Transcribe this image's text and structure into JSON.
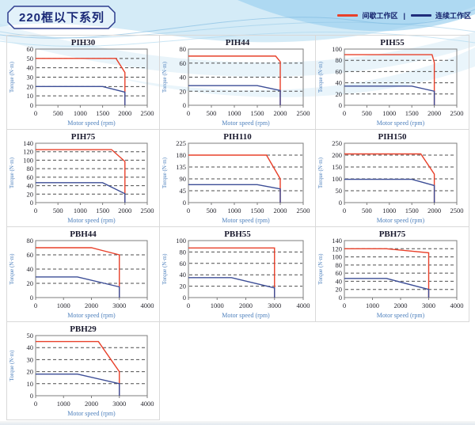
{
  "header": {
    "title": "220框以下系列",
    "legend": {
      "items": [
        {
          "label": "间歇工作区",
          "color": "#e8402a"
        },
        {
          "label": "连续工作区",
          "color": "#1f2d7b"
        }
      ],
      "separator": "|"
    }
  },
  "chart_defaults": {
    "xlabel": "Motor speed (rpm)",
    "ylabel": "Torque (N·m)",
    "grid": "dashed",
    "legend_position": "top-right-of-page",
    "colors": {
      "intermittent": "#e8402a",
      "continuous": "#3c4d96",
      "grid_line": "#4f4f4f",
      "plot_border": "#7d7d7d",
      "axis_label": "#4f81bd"
    }
  },
  "chart_data": [
    {
      "type": "line",
      "name": "PIH30",
      "title": "PIH30",
      "xlim": [
        0,
        2500
      ],
      "xticks": [
        0,
        500,
        1000,
        1500,
        2000,
        2500
      ],
      "ylim": [
        0,
        60
      ],
      "yticks": [
        0,
        10,
        20,
        30,
        40,
        50,
        60
      ],
      "series": [
        {
          "name": "间歇工作区",
          "points": [
            [
              0,
              50
            ],
            [
              1800,
              50
            ],
            [
              2000,
              35
            ],
            [
              2000,
              0
            ]
          ]
        },
        {
          "name": "连续工作区",
          "points": [
            [
              0,
              20
            ],
            [
              1500,
              20
            ],
            [
              2000,
              14
            ],
            [
              2000,
              0
            ]
          ]
        }
      ]
    },
    {
      "type": "line",
      "name": "PIH44",
      "title": "PIH44",
      "xlim": [
        0,
        2500
      ],
      "xticks": [
        0,
        500,
        1000,
        1500,
        2000,
        2500
      ],
      "ylim": [
        0,
        80
      ],
      "yticks": [
        0,
        20,
        40,
        60,
        80
      ],
      "series": [
        {
          "name": "间歇工作区",
          "points": [
            [
              0,
              70
            ],
            [
              1900,
              70
            ],
            [
              2000,
              62
            ],
            [
              2000,
              0
            ]
          ]
        },
        {
          "name": "连续工作区",
          "points": [
            [
              0,
              28
            ],
            [
              1500,
              28
            ],
            [
              2000,
              21
            ],
            [
              2000,
              0
            ]
          ]
        }
      ]
    },
    {
      "type": "line",
      "name": "PIH55",
      "title": "PIH55",
      "xlim": [
        0,
        2500
      ],
      "xticks": [
        0,
        500,
        1000,
        1500,
        2000,
        2500
      ],
      "ylim": [
        0,
        100
      ],
      "yticks": [
        0,
        20,
        40,
        60,
        80,
        100
      ],
      "series": [
        {
          "name": "间歇工作区",
          "points": [
            [
              0,
              90
            ],
            [
              1950,
              90
            ],
            [
              2000,
              76
            ],
            [
              2000,
              0
            ]
          ]
        },
        {
          "name": "连续工作区",
          "points": [
            [
              0,
              34
            ],
            [
              1500,
              34
            ],
            [
              2000,
              25
            ],
            [
              2000,
              0
            ]
          ]
        }
      ]
    },
    {
      "type": "line",
      "name": "PIH75",
      "title": "PIH75",
      "xlim": [
        0,
        2500
      ],
      "xticks": [
        0,
        500,
        1000,
        1500,
        2000,
        2500
      ],
      "ylim": [
        0,
        140
      ],
      "yticks": [
        0,
        20,
        40,
        60,
        80,
        100,
        120,
        140
      ],
      "series": [
        {
          "name": "间歇工作区",
          "points": [
            [
              0,
              125
            ],
            [
              1700,
              125
            ],
            [
              2000,
              97
            ],
            [
              2000,
              0
            ]
          ]
        },
        {
          "name": "连续工作区",
          "points": [
            [
              0,
              47
            ],
            [
              1500,
              47
            ],
            [
              2000,
              21
            ],
            [
              2000,
              0
            ]
          ]
        }
      ]
    },
    {
      "type": "line",
      "name": "PIH110",
      "title": "PIH110",
      "xlim": [
        0,
        2500
      ],
      "xticks": [
        0,
        500,
        1000,
        1500,
        2000,
        2500
      ],
      "ylim": [
        0,
        225
      ],
      "yticks": [
        0,
        45,
        90,
        135,
        180,
        225
      ],
      "series": [
        {
          "name": "间歇工作区",
          "points": [
            [
              0,
              180
            ],
            [
              1700,
              180
            ],
            [
              2000,
              90
            ],
            [
              2000,
              0
            ]
          ]
        },
        {
          "name": "连续工作区",
          "points": [
            [
              0,
              68
            ],
            [
              1500,
              68
            ],
            [
              2000,
              52
            ],
            [
              2000,
              0
            ]
          ]
        }
      ]
    },
    {
      "type": "line",
      "name": "PIH150",
      "title": "PIH150",
      "xlim": [
        0,
        2500
      ],
      "xticks": [
        0,
        500,
        1000,
        1500,
        2000,
        2500
      ],
      "ylim": [
        0,
        250
      ],
      "yticks": [
        0,
        50,
        100,
        150,
        200,
        250
      ],
      "series": [
        {
          "name": "间歇工作区",
          "points": [
            [
              0,
              205
            ],
            [
              1700,
              205
            ],
            [
              2000,
              120
            ],
            [
              2000,
              0
            ]
          ]
        },
        {
          "name": "连续工作区",
          "points": [
            [
              0,
              98
            ],
            [
              1500,
              98
            ],
            [
              2000,
              72
            ],
            [
              2000,
              0
            ]
          ]
        }
      ]
    },
    {
      "type": "line",
      "name": "PBH44",
      "title": "PBH44",
      "xlim": [
        0,
        4000
      ],
      "xticks": [
        0,
        1000,
        2000,
        3000,
        4000
      ],
      "ylim": [
        0,
        80
      ],
      "yticks": [
        0,
        20,
        40,
        60,
        80
      ],
      "series": [
        {
          "name": "间歇工作区",
          "points": [
            [
              0,
              70
            ],
            [
              2000,
              70
            ],
            [
              3000,
              60
            ],
            [
              3000,
              0
            ]
          ]
        },
        {
          "name": "连续工作区",
          "points": [
            [
              0,
              29
            ],
            [
              1500,
              29
            ],
            [
              3000,
              15
            ],
            [
              3000,
              0
            ]
          ]
        }
      ]
    },
    {
      "type": "line",
      "name": "PBH55",
      "title": "PBH55",
      "xlim": [
        0,
        4000
      ],
      "xticks": [
        0,
        1000,
        2000,
        3000,
        4000
      ],
      "ylim": [
        0,
        100
      ],
      "yticks": [
        0,
        20,
        40,
        60,
        80,
        100
      ],
      "series": [
        {
          "name": "间歇工作区",
          "points": [
            [
              0,
              87
            ],
            [
              3000,
              87
            ],
            [
              3000,
              0
            ]
          ]
        },
        {
          "name": "连续工作区",
          "points": [
            [
              0,
              35
            ],
            [
              1500,
              35
            ],
            [
              3000,
              17
            ],
            [
              3000,
              0
            ]
          ]
        }
      ]
    },
    {
      "type": "line",
      "name": "PBH75",
      "title": "PBH75",
      "xlim": [
        0,
        4000
      ],
      "xticks": [
        0,
        1000,
        2000,
        3000,
        4000
      ],
      "ylim": [
        0,
        140
      ],
      "yticks": [
        0,
        20,
        40,
        60,
        80,
        100,
        120,
        140
      ],
      "series": [
        {
          "name": "间歇工作区",
          "points": [
            [
              0,
              120
            ],
            [
              1500,
              120
            ],
            [
              3000,
              110
            ],
            [
              3000,
              0
            ]
          ]
        },
        {
          "name": "连续工作区",
          "points": [
            [
              0,
              47
            ],
            [
              1500,
              47
            ],
            [
              3000,
              20
            ],
            [
              3000,
              0
            ]
          ]
        }
      ]
    },
    {
      "type": "line",
      "name": "PBH29",
      "title": "PBH29",
      "xlim": [
        0,
        4000
      ],
      "xticks": [
        0,
        1000,
        2000,
        3000,
        4000
      ],
      "ylim": [
        0,
        50
      ],
      "yticks": [
        0,
        10,
        20,
        30,
        40,
        50
      ],
      "series": [
        {
          "name": "间歇工作区",
          "points": [
            [
              0,
              45
            ],
            [
              2250,
              45
            ],
            [
              3000,
              20
            ],
            [
              3000,
              0
            ]
          ]
        },
        {
          "name": "连续工作区",
          "points": [
            [
              0,
              18
            ],
            [
              1500,
              18
            ],
            [
              3000,
              10
            ],
            [
              3000,
              0
            ]
          ]
        }
      ]
    }
  ]
}
